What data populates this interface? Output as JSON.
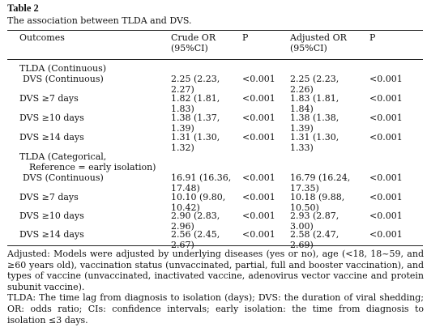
{
  "caption": {
    "title": "Table 2",
    "text": "The association between TLDA and DVS."
  },
  "header": {
    "outcomes": "Outcomes",
    "crude_or_1": "Crude OR",
    "crude_or_2": "(95%CI)",
    "p1": "P",
    "adj_or_1": "Adjusted OR",
    "adj_or_2": "(95%CI)",
    "p2": "P"
  },
  "rows": [
    {
      "label": "TLDA (Continuous)"
    },
    {
      "label": "DVS (Continuous)",
      "crude_a": "2.25 (2.23,",
      "crude_b": "2.27)",
      "p1": "<0.001",
      "adj_a": "2.25 (2.23,",
      "adj_b": "2.26)",
      "p2": "<0.001"
    },
    {
      "label": "DVS ≥7 days",
      "crude_a": "1.82 (1.81,",
      "crude_b": "1.83)",
      "p1": "<0.001",
      "adj_a": "1.83 (1.81,",
      "adj_b": "1.84)",
      "p2": "<0.001"
    },
    {
      "label": "DVS ≥10 days",
      "crude_a": "1.38 (1.37,",
      "crude_b": "1.39)",
      "p1": "<0.001",
      "adj_a": "1.38 (1.38,",
      "adj_b": "1.39)",
      "p2": "<0.001"
    },
    {
      "label": "DVS ≥14 days",
      "crude_a": "1.31 (1.30,",
      "crude_b": "1.32)",
      "p1": "<0.001",
      "adj_a": "1.31 (1.30,",
      "adj_b": "1.33)",
      "p2": "<0.001"
    },
    {
      "label": "TLDA (Categorical,",
      "label2": "Reference = early isolation)"
    },
    {
      "label": "DVS (Continuous)",
      "crude_a": "16.91 (16.36,",
      "crude_b": "17.48)",
      "p1": "<0.001",
      "adj_a": "16.79 (16.24,",
      "adj_b": "17.35)",
      "p2": "<0.001"
    },
    {
      "label": "DVS ≥7 days",
      "crude_a": "10.10 (9.80,",
      "crude_b": "10.42)",
      "p1": "<0.001",
      "adj_a": "10.18 (9.88,",
      "adj_b": "10.50)",
      "p2": "<0.001"
    },
    {
      "label": "DVS ≥10 days",
      "crude_a": "2.90 (2.83,",
      "crude_b": "2.96)",
      "p1": "<0.001",
      "adj_a": "2.93 (2.87,",
      "adj_b": "3.00)",
      "p2": "<0.001"
    },
    {
      "label": "DVS ≥14 days",
      "crude_a": "2.56 (2.45,",
      "crude_b": "2.67)",
      "p1": "<0.001",
      "adj_a": "2.58 (2.47,",
      "adj_b": "2.69)",
      "p2": "<0.001"
    }
  ],
  "footnotes": {
    "adjusted": "Adjusted: Models were adjusted by underlying diseases (yes or no), age (<18, 18~59, and ≥60 years old), vaccination status (unvaccinated, partial, full and booster vaccination), and types of vaccine (unvaccinated, inactivated vaccine, adenovirus vector vaccine and protein subunit vaccine).",
    "abbreviations": "TLDA: The time lag from diagnosis to isolation (days); DVS: the duration of viral shedding; OR: odds ratio; CIs: confidence intervals; early isolation: the time from diagnosis to isolation ≤3 days."
  }
}
